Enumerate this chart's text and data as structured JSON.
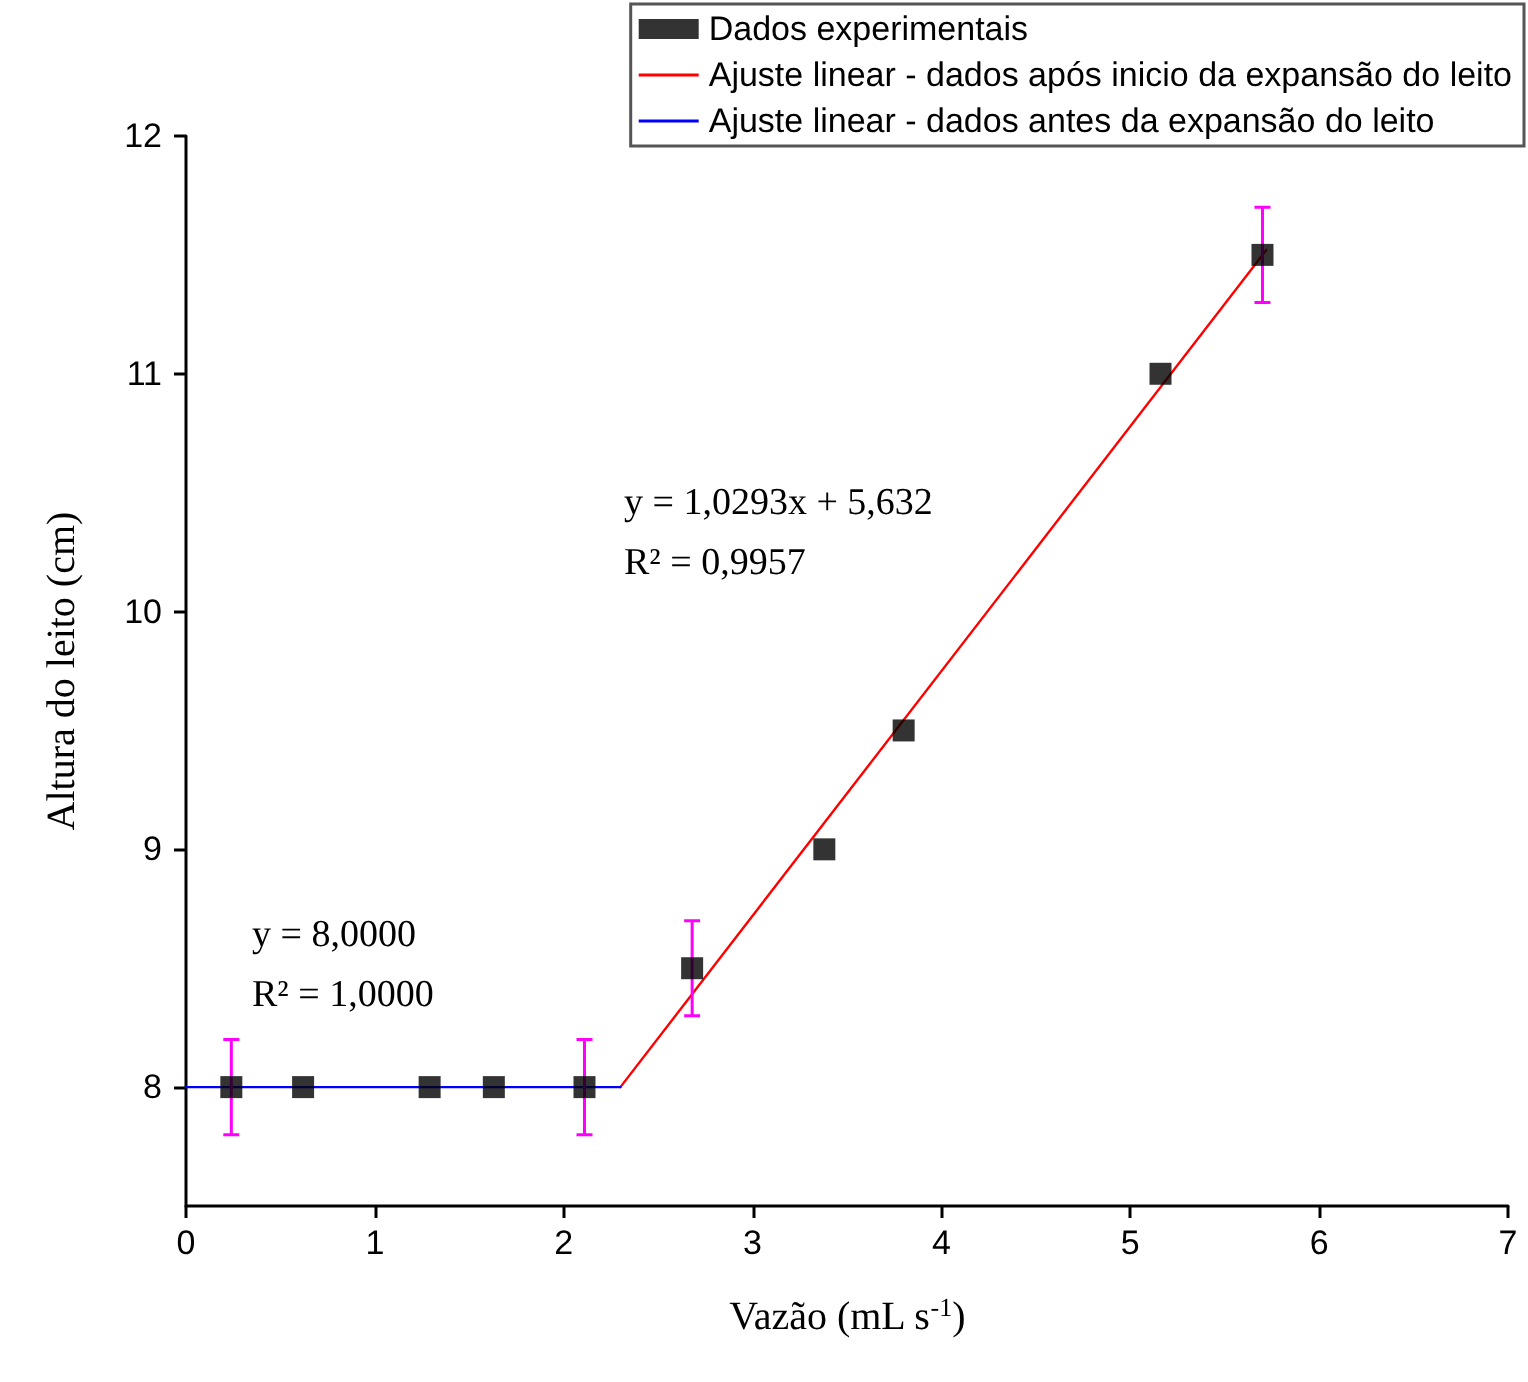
{
  "chart_data": {
    "type": "scatter",
    "xlabel": "Vazão (mL s$^{-1}$)",
    "ylabel": "Altura do leito (cm)",
    "xlim": [
      0,
      7
    ],
    "xticks": [
      0,
      1,
      2,
      3,
      4,
      5,
      6,
      7
    ],
    "ylim": [
      7.5,
      12
    ],
    "yticks": [
      8,
      9,
      10,
      11,
      12
    ],
    "grid": false,
    "legend": "top right",
    "marker": "square",
    "series": [
      {
        "name": "Dados experimentais",
        "color": "#000000",
        "x": [
          0.24,
          0.62,
          1.29,
          1.63,
          2.11,
          2.68,
          3.38,
          3.8,
          5.16,
          5.7
        ],
        "values": [
          8,
          8,
          8,
          8,
          8,
          8.5,
          9,
          9.5,
          11,
          11.5
        ],
        "errors": [
          0.2,
          null,
          null,
          null,
          0.2,
          0.2,
          null,
          null,
          null,
          0.2
        ]
      },
      {
        "name": "Ajuste linear - dados após inicio da expansão do leito",
        "type": "line",
        "color": "#ff0000",
        "marker": "none",
        "line_style": "solid",
        "x": [
          2.3,
          5.72
        ],
        "values": [
          8.0,
          11.52
        ]
      },
      {
        "name": "Ajuste linear - dados antes da expansão do leito",
        "type": "line",
        "color": "#0000ff",
        "marker": "none",
        "line_style": "solid",
        "x": [
          0,
          2.3
        ],
        "values": [
          8,
          8
        ]
      }
    ],
    "annotations": [
      "y = 8,0000",
      "R² = 1,0000",
      "y = 1,0293x + 5,632",
      "R² = 0,9957"
    ]
  }
}
